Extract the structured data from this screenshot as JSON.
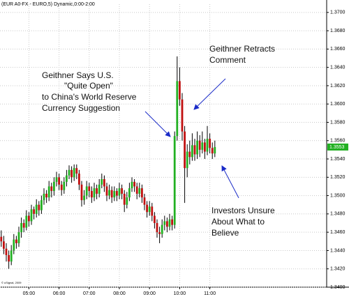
{
  "chart_data": {
    "type": "candlestick",
    "title": "(EUR A0-FX - EURO,5) Dynamic,0:00-2:00",
    "footnote": "© uSignal, 2009",
    "up_color": "#22b022",
    "down_color": "#c01010",
    "wick_color": "#000000",
    "grid": true,
    "ylim": [
      1.34,
      1.3709
    ],
    "yticks": [
      {
        "value": 1.34,
        "label": "1.3400"
      },
      {
        "value": 1.342,
        "label": "1.3420"
      },
      {
        "value": 1.344,
        "label": "1.3440"
      },
      {
        "value": 1.346,
        "label": "1.3460"
      },
      {
        "value": 1.348,
        "label": "1.3480"
      },
      {
        "value": 1.35,
        "label": "1.3500"
      },
      {
        "value": 1.352,
        "label": "1.3520"
      },
      {
        "value": 1.354,
        "label": "1.3540"
      },
      {
        "value": 1.356,
        "label": "1.3560"
      },
      {
        "value": 1.358,
        "label": "1.3580"
      },
      {
        "value": 1.36,
        "label": "1.3600"
      },
      {
        "value": 1.362,
        "label": "1.3620"
      },
      {
        "value": 1.364,
        "label": "1.3640"
      },
      {
        "value": 1.366,
        "label": "1.3660"
      },
      {
        "value": 1.368,
        "label": "1.3680"
      },
      {
        "value": 1.37,
        "label": "1.3700"
      }
    ],
    "categories": [
      null,
      null,
      null,
      null,
      null,
      null,
      null,
      null,
      null,
      null,
      null,
      "05:00",
      null,
      null,
      null,
      null,
      null,
      null,
      null,
      null,
      null,
      null,
      null,
      "06:00",
      null,
      null,
      null,
      null,
      null,
      null,
      null,
      null,
      null,
      null,
      null,
      "07:00",
      null,
      null,
      null,
      null,
      null,
      null,
      null,
      null,
      null,
      null,
      null,
      "08:00",
      null,
      null,
      null,
      null,
      null,
      null,
      null,
      null,
      null,
      null,
      null,
      "09:00",
      null,
      null,
      null,
      null,
      null,
      null,
      null,
      null,
      null,
      null,
      null,
      "10:00",
      null,
      null,
      null,
      null,
      null,
      null,
      null,
      null,
      null,
      null,
      null,
      "11:00",
      null,
      null
    ],
    "open": [
      1.3455,
      1.345,
      1.3442,
      1.3435,
      1.3428,
      1.344,
      1.3452,
      1.3448,
      1.346,
      1.347,
      1.3465,
      1.3478,
      1.3472,
      1.3485,
      1.348,
      1.349,
      1.3484,
      1.3495,
      1.3502,
      1.3498,
      1.351,
      1.3505,
      1.3515,
      1.352,
      1.3512,
      1.3506,
      1.3515,
      1.3522,
      1.3528,
      1.352,
      1.353,
      1.3524,
      1.3512,
      1.3495,
      1.35,
      1.351,
      1.3505,
      1.3498,
      1.3508,
      1.3502,
      1.3512,
      1.3518,
      1.351,
      1.35,
      1.3506,
      1.3498,
      1.3505,
      1.35,
      1.3508,
      1.3502,
      1.349,
      1.3498,
      1.3508,
      1.3515,
      1.351,
      1.3502,
      1.3508,
      1.3498,
      1.349,
      1.3482,
      1.3488,
      1.3478,
      1.347,
      1.346,
      1.3458,
      1.3468,
      1.3472,
      1.3466,
      1.3474,
      1.3468,
      1.3565,
      1.3625,
      1.3605,
      1.357,
      1.353,
      1.3548,
      1.3542,
      1.3555,
      1.3545,
      1.356,
      1.355,
      1.3558,
      1.3548,
      1.3562,
      1.3552,
      1.3546
    ],
    "high": [
      1.3462,
      1.3456,
      1.3448,
      1.344,
      1.3446,
      1.3458,
      1.3456,
      1.3466,
      1.3476,
      1.3474,
      1.3484,
      1.3482,
      1.349,
      1.3488,
      1.3496,
      1.3494,
      1.35,
      1.3508,
      1.3506,
      1.3516,
      1.3514,
      1.352,
      1.3526,
      1.3524,
      1.3516,
      1.352,
      1.3528,
      1.3533,
      1.3532,
      1.3534,
      1.3534,
      1.3528,
      1.3516,
      1.3506,
      1.3516,
      1.3514,
      1.351,
      1.3514,
      1.3512,
      1.3518,
      1.3524,
      1.3522,
      1.3514,
      1.3512,
      1.351,
      1.351,
      1.3508,
      1.3514,
      1.3512,
      1.3506,
      1.3504,
      1.3514,
      1.352,
      1.3518,
      1.3514,
      1.3514,
      1.3512,
      1.3502,
      1.3494,
      1.3494,
      1.3492,
      1.3482,
      1.3474,
      1.3466,
      1.3474,
      1.3478,
      1.3476,
      1.348,
      1.3478,
      1.357,
      1.3652,
      1.364,
      1.3612,
      1.3576,
      1.3556,
      1.356,
      1.3568,
      1.3562,
      1.357,
      1.3566,
      1.357,
      1.3562,
      1.3576,
      1.3568,
      1.3558,
      1.356
    ],
    "low": [
      1.3444,
      1.3436,
      1.3428,
      1.342,
      1.3424,
      1.3436,
      1.3442,
      1.3444,
      1.3454,
      1.346,
      1.3462,
      1.3466,
      1.3468,
      1.3474,
      1.3476,
      1.3478,
      1.348,
      1.349,
      1.3492,
      1.3494,
      1.3498,
      1.35,
      1.351,
      1.3506,
      1.35,
      1.3502,
      1.351,
      1.3518,
      1.3514,
      1.3516,
      1.3518,
      1.3506,
      1.3488,
      1.349,
      1.3496,
      1.3498,
      1.3492,
      1.3494,
      1.3496,
      1.3498,
      1.3508,
      1.3504,
      1.3494,
      1.3496,
      1.3492,
      1.3494,
      1.3494,
      1.3496,
      1.3496,
      1.3482,
      1.3486,
      1.3494,
      1.3504,
      1.3504,
      1.3496,
      1.3498,
      1.3492,
      1.3484,
      1.3476,
      1.3478,
      1.3472,
      1.3464,
      1.3454,
      1.3448,
      1.3454,
      1.3462,
      1.346,
      1.3462,
      1.3462,
      1.3464,
      1.356,
      1.3598,
      1.356,
      1.3492,
      1.352,
      1.3534,
      1.3538,
      1.3538,
      1.354,
      1.3542,
      1.3546,
      1.354,
      1.3544,
      1.3546,
      1.354,
      1.3542
    ],
    "close": [
      1.345,
      1.3442,
      1.3435,
      1.3428,
      1.344,
      1.3452,
      1.3448,
      1.346,
      1.347,
      1.3465,
      1.3478,
      1.3472,
      1.3485,
      1.348,
      1.349,
      1.3484,
      1.3495,
      1.3502,
      1.3498,
      1.351,
      1.3505,
      1.3515,
      1.352,
      1.3512,
      1.3506,
      1.3515,
      1.3522,
      1.3528,
      1.352,
      1.353,
      1.3524,
      1.3512,
      1.3495,
      1.35,
      1.351,
      1.3505,
      1.3498,
      1.3508,
      1.3502,
      1.3512,
      1.3518,
      1.351,
      1.35,
      1.3506,
      1.3498,
      1.3505,
      1.35,
      1.3508,
      1.3502,
      1.349,
      1.3498,
      1.3508,
      1.3515,
      1.351,
      1.3502,
      1.3508,
      1.3498,
      1.349,
      1.3482,
      1.3488,
      1.3478,
      1.347,
      1.346,
      1.3458,
      1.3468,
      1.3472,
      1.3466,
      1.3474,
      1.3468,
      1.3565,
      1.3625,
      1.3605,
      1.357,
      1.353,
      1.3548,
      1.3542,
      1.3555,
      1.3545,
      1.356,
      1.355,
      1.3558,
      1.3548,
      1.3562,
      1.3552,
      1.3546,
      1.3553
    ],
    "annotations": [
      {
        "lines": [
          "Geithner Says U.S.",
          "\"Quite Open\"",
          "to China's World Reserve",
          "Currency Suggestion"
        ]
      },
      {
        "lines": [
          "Geithner Retracts",
          "Comment"
        ]
      },
      {
        "lines": [
          "Investors Unsure",
          "About What to",
          "Believe"
        ]
      }
    ]
  }
}
